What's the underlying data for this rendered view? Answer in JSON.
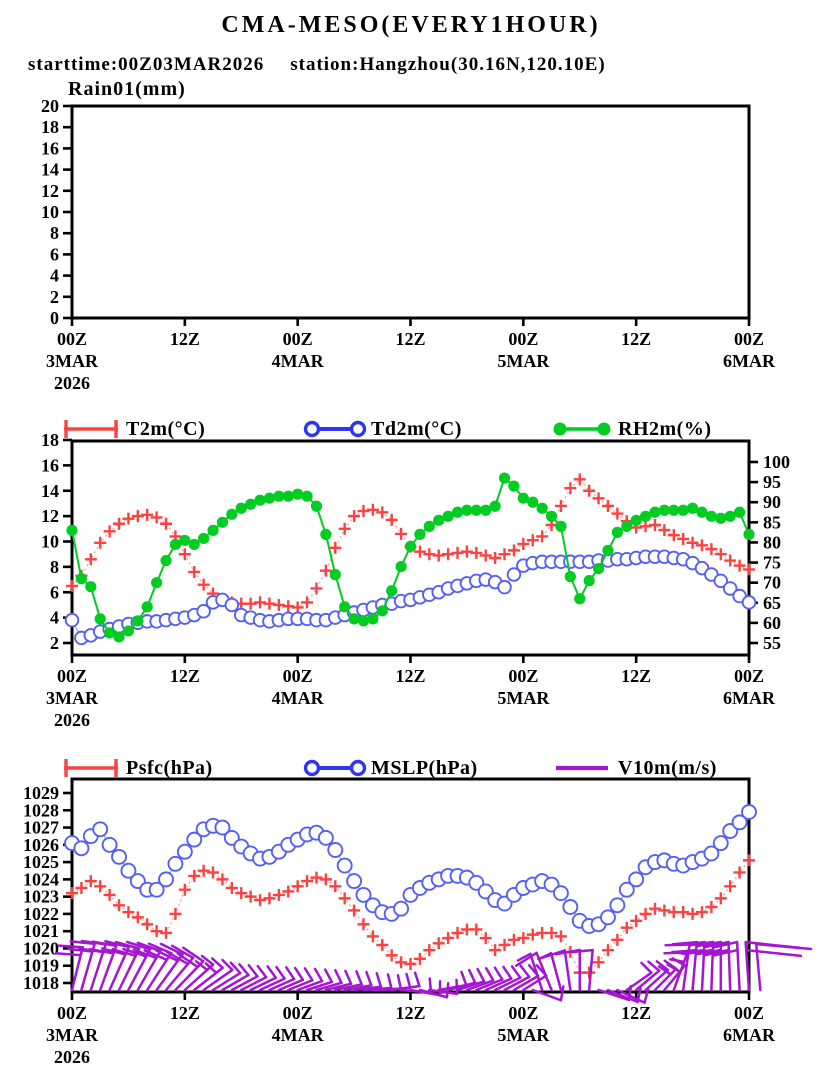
{
  "header": {
    "title": "CMA-MESO(EVERY1HOUR)",
    "starttime": "starttime:00Z03MAR2026",
    "station": "station:Hangzhou(30.16N,120.10E)"
  },
  "colors": {
    "temp_red": "#fb4242",
    "temp_red_line": "#faa0a0",
    "dew_blue": "#2e36f0",
    "dew_blue_marker": "#5560f2",
    "dew_blue_line": "#9aa1f6",
    "rh_green": "#00cc22",
    "wind_purple": "#a416d2",
    "axis_black": "#000000",
    "background": "#ffffff"
  },
  "x_axis": {
    "hours_total": 72,
    "ticks": [
      {
        "h": 0,
        "top": "00Z",
        "mid": "3MAR",
        "bot": "2026"
      },
      {
        "h": 12,
        "top": "12Z"
      },
      {
        "h": 24,
        "top": "00Z",
        "mid": "4MAR"
      },
      {
        "h": 36,
        "top": "12Z"
      },
      {
        "h": 48,
        "top": "00Z",
        "mid": "5MAR"
      },
      {
        "h": 60,
        "top": "12Z"
      },
      {
        "h": 72,
        "top": "00Z",
        "mid": "6MAR"
      }
    ]
  },
  "panels": {
    "rain": {
      "title": "Rain01(mm)",
      "y_ticks": [
        0,
        2,
        4,
        6,
        8,
        10,
        12,
        14,
        16,
        18,
        20
      ]
    },
    "temp": {
      "legend": [
        {
          "label": "T2m(°C)"
        },
        {
          "label": "Td2m(°C)"
        },
        {
          "label": "RH2m(%)"
        }
      ],
      "left_ticks": [
        2,
        4,
        6,
        8,
        10,
        12,
        14,
        16,
        18
      ],
      "right_ticks": [
        55,
        60,
        65,
        70,
        75,
        80,
        85,
        90,
        95,
        100
      ]
    },
    "pressure": {
      "legend": [
        {
          "label": "Psfc(hPa)"
        },
        {
          "label": "MSLP(hPa)"
        },
        {
          "label": "V10m(m/s)"
        }
      ],
      "left_ticks": [
        1018,
        1019,
        1020,
        1021,
        1022,
        1023,
        1024,
        1025,
        1026,
        1027,
        1028,
        1029
      ]
    }
  },
  "chart_data": [
    {
      "type": "line",
      "title": "Rain01(mm)",
      "x_start": "00Z 3MAR2026",
      "x_end": "00Z 6MAR2026",
      "x_step_hours": 1,
      "ylim": [
        0,
        20
      ],
      "series": [
        {
          "name": "Rain01(mm)",
          "values": [],
          "note": "no precipitation forecast - panel empty"
        }
      ]
    },
    {
      "type": "line",
      "x_start": "00Z 3MAR2026",
      "x_step_hours": 1,
      "ylim_left": [
        1,
        18
      ],
      "ylim_right": [
        52,
        105.3
      ],
      "series": [
        {
          "name": "T2m(°C)",
          "axis": "left",
          "marker": "plus",
          "color": "#fb4242",
          "values": [
            6.5,
            7.3,
            8.6,
            9.9,
            10.8,
            11.4,
            11.8,
            12.0,
            12.1,
            11.9,
            11.4,
            10.4,
            9.0,
            7.6,
            6.6,
            5.9,
            5.4,
            5.2,
            5.1,
            5.1,
            5.2,
            5.1,
            5.0,
            4.9,
            4.8,
            5.2,
            6.3,
            7.7,
            9.5,
            11.0,
            12.0,
            12.4,
            12.5,
            12.3,
            11.7,
            10.6,
            9.6,
            9.2,
            9.0,
            8.9,
            9.0,
            9.1,
            9.2,
            9.1,
            8.9,
            8.7,
            9.0,
            9.3,
            9.8,
            10.1,
            10.4,
            11.3,
            12.8,
            14.2,
            14.9,
            14.0,
            13.4,
            12.8,
            12.2,
            11.6,
            11.1,
            11.2,
            11.3,
            10.9,
            10.5,
            10.2,
            9.9,
            9.7,
            9.4,
            9.0,
            8.5,
            8.1,
            7.8
          ]
        },
        {
          "name": "Td2m(°C)",
          "axis": "left",
          "marker": "open-circle",
          "color": "#2e36f0",
          "values": [
            3.8,
            2.4,
            2.6,
            2.9,
            3.1,
            3.3,
            3.5,
            3.6,
            3.7,
            3.7,
            3.8,
            3.9,
            4.0,
            4.2,
            4.5,
            5.2,
            5.4,
            5.0,
            4.2,
            4.0,
            3.8,
            3.7,
            3.8,
            3.9,
            3.9,
            3.9,
            3.8,
            3.8,
            4.0,
            4.2,
            4.4,
            4.6,
            4.8,
            5.0,
            5.1,
            5.3,
            5.4,
            5.6,
            5.8,
            6.0,
            6.3,
            6.5,
            6.7,
            6.9,
            7.0,
            6.8,
            6.4,
            7.4,
            8.1,
            8.3,
            8.4,
            8.4,
            8.4,
            8.4,
            8.4,
            8.4,
            8.5,
            8.5,
            8.6,
            8.6,
            8.7,
            8.8,
            8.8,
            8.8,
            8.7,
            8.6,
            8.3,
            7.9,
            7.4,
            6.9,
            6.3,
            5.7,
            5.2
          ]
        },
        {
          "name": "RH2m(%)",
          "axis": "right",
          "marker": "filled-circle",
          "color": "#00cc22",
          "values": [
            83,
            71,
            69,
            61,
            57.5,
            56.5,
            58,
            60.5,
            64,
            70,
            75.5,
            79.5,
            80.5,
            79.5,
            81,
            83,
            85,
            87,
            88.5,
            89.5,
            90.5,
            91,
            91.5,
            91.5,
            92,
            91.5,
            89,
            82,
            72,
            64,
            61,
            60.5,
            61,
            63,
            68,
            74,
            79,
            82,
            84,
            85.5,
            86.5,
            87.5,
            88,
            88,
            88,
            89,
            96,
            94,
            91,
            90,
            88.5,
            86.5,
            84,
            71.5,
            66,
            70.5,
            73.5,
            78,
            82.5,
            84,
            85.5,
            86.5,
            87.5,
            88,
            88,
            88,
            88.5,
            87.5,
            86.5,
            86,
            86.5,
            87.5,
            82
          ]
        }
      ]
    },
    {
      "type": "line+wind-barbs",
      "x_start": "00Z 3MAR2026",
      "x_step_hours": 1,
      "ylim": [
        1017.5,
        1029.8
      ],
      "series": [
        {
          "name": "Psfc(hPa)",
          "marker": "plus",
          "color": "#fb4242",
          "values": [
            1023.2,
            1023.5,
            1023.9,
            1023.6,
            1023.1,
            1022.5,
            1022.1,
            1021.8,
            1021.4,
            1021.0,
            1020.9,
            1022.0,
            1023.4,
            1024.2,
            1024.5,
            1024.4,
            1024.0,
            1023.5,
            1023.2,
            1023.0,
            1022.8,
            1022.9,
            1023.1,
            1023.3,
            1023.6,
            1023.9,
            1024.1,
            1024.0,
            1023.6,
            1022.9,
            1022.2,
            1021.4,
            1020.7,
            1020.2,
            1019.6,
            1019.2,
            1019.1,
            1019.4,
            1019.9,
            1020.3,
            1020.6,
            1020.9,
            1021.1,
            1021.1,
            1020.6,
            1019.9,
            1020.2,
            1020.5,
            1020.6,
            1020.8,
            1020.9,
            1020.9,
            1020.7,
            1019.8,
            1018.6,
            1018.6,
            1019.2,
            1019.9,
            1020.5,
            1021.2,
            1021.6,
            1022.0,
            1022.3,
            1022.2,
            1022.1,
            1022.1,
            1022.0,
            1022.1,
            1022.4,
            1022.9,
            1023.6,
            1024.4,
            1025.1
          ]
        },
        {
          "name": "MSLP(hPa)",
          "marker": "open-circle",
          "color": "#2e36f0",
          "values": [
            1026.1,
            1025.8,
            1026.5,
            1026.9,
            1026.0,
            1025.3,
            1024.5,
            1023.9,
            1023.4,
            1023.4,
            1024.0,
            1024.9,
            1025.6,
            1026.3,
            1026.9,
            1027.1,
            1027.0,
            1026.4,
            1025.9,
            1025.5,
            1025.2,
            1025.3,
            1025.6,
            1026.0,
            1026.3,
            1026.6,
            1026.7,
            1026.4,
            1025.7,
            1024.8,
            1023.9,
            1023.1,
            1022.5,
            1022.1,
            1022.0,
            1022.3,
            1023.1,
            1023.5,
            1023.8,
            1024.0,
            1024.2,
            1024.2,
            1024.1,
            1023.8,
            1023.3,
            1022.8,
            1022.6,
            1023.1,
            1023.5,
            1023.7,
            1023.9,
            1023.7,
            1023.2,
            1022.4,
            1021.6,
            1021.3,
            1021.4,
            1021.8,
            1022.5,
            1023.4,
            1024.0,
            1024.7,
            1025.0,
            1025.1,
            1024.9,
            1024.8,
            1025.0,
            1025.2,
            1025.5,
            1026.1,
            1026.8,
            1027.3,
            1027.9
          ]
        }
      ],
      "wind_barbs": {
        "name": "V10m(m/s)",
        "color": "#a416d2",
        "barb_format": [
          "hour",
          "staff_angle_deg_from_vertical",
          "staff_length_px",
          "tick_count",
          "ticks_flipped"
        ],
        "barbs": [
          [
            0,
            14,
            44,
            2,
            0
          ],
          [
            1,
            16,
            48,
            2,
            0
          ],
          [
            2,
            18,
            48,
            2,
            0
          ],
          [
            3,
            20,
            47,
            2,
            0
          ],
          [
            4,
            24,
            47,
            2,
            0
          ],
          [
            5,
            26,
            46,
            2,
            0
          ],
          [
            6,
            28,
            46,
            2,
            0
          ],
          [
            7,
            30,
            45,
            2,
            0
          ],
          [
            8,
            33,
            44,
            2,
            0
          ],
          [
            9,
            36,
            44,
            2,
            0
          ],
          [
            10,
            40,
            42,
            2,
            0
          ],
          [
            11,
            44,
            40,
            2,
            0
          ],
          [
            12,
            48,
            38,
            2,
            0
          ],
          [
            13,
            52,
            36,
            2,
            0
          ],
          [
            14,
            55,
            35,
            1,
            0
          ],
          [
            15,
            58,
            32,
            1,
            0
          ],
          [
            16,
            60,
            30,
            1,
            0
          ],
          [
            17,
            62,
            29,
            1,
            0
          ],
          [
            18,
            63,
            28,
            1,
            0
          ],
          [
            19,
            64,
            28,
            1,
            0
          ],
          [
            20,
            65,
            27,
            1,
            0
          ],
          [
            21,
            66,
            27,
            1,
            0
          ],
          [
            22,
            67,
            26,
            1,
            0
          ],
          [
            23,
            68,
            26,
            1,
            0
          ],
          [
            24,
            70,
            26,
            1,
            0
          ],
          [
            25,
            72,
            26,
            1,
            0
          ],
          [
            26,
            74,
            26,
            1,
            0
          ],
          [
            27,
            76,
            26,
            1,
            0
          ],
          [
            28,
            78,
            27,
            1,
            0
          ],
          [
            29,
            80,
            27,
            1,
            0
          ],
          [
            30,
            83,
            27,
            1,
            0
          ],
          [
            31,
            86,
            28,
            1,
            0
          ],
          [
            32,
            88,
            28,
            1,
            0
          ],
          [
            33,
            85,
            28,
            1,
            0
          ],
          [
            34,
            82,
            28,
            1,
            0
          ],
          [
            35,
            95,
            30,
            1,
            0
          ],
          [
            36,
            100,
            30,
            1,
            0
          ],
          [
            37,
            105,
            28,
            1,
            0
          ],
          [
            38,
            98,
            28,
            1,
            0
          ],
          [
            39,
            80,
            28,
            1,
            0
          ],
          [
            40,
            75,
            28,
            1,
            0
          ],
          [
            41,
            72,
            28,
            1,
            0
          ],
          [
            42,
            70,
            28,
            1,
            0
          ],
          [
            43,
            68,
            28,
            1,
            0
          ],
          [
            44,
            66,
            28,
            1,
            0
          ],
          [
            45,
            64,
            28,
            1,
            0
          ],
          [
            46,
            62,
            28,
            1,
            0
          ],
          [
            47,
            60,
            28,
            1,
            0
          ],
          [
            48,
            58,
            27,
            1,
            0
          ],
          [
            49,
            110,
            30,
            1,
            0
          ],
          [
            50,
            -18,
            38,
            1,
            0
          ],
          [
            51,
            -22,
            40,
            1,
            0
          ],
          [
            52,
            -15,
            38,
            1,
            0
          ],
          [
            53,
            -8,
            40,
            1,
            0
          ],
          [
            54,
            0,
            40,
            1,
            0
          ],
          [
            55,
            5,
            40,
            1,
            0
          ],
          [
            56,
            108,
            32,
            1,
            0
          ],
          [
            57,
            112,
            32,
            1,
            0
          ],
          [
            58,
            115,
            30,
            1,
            0
          ],
          [
            59,
            55,
            30,
            1,
            0
          ],
          [
            60,
            50,
            30,
            1,
            0
          ],
          [
            61,
            48,
            30,
            1,
            0
          ],
          [
            62,
            45,
            30,
            2,
            0
          ],
          [
            63,
            40,
            32,
            2,
            0
          ],
          [
            64,
            20,
            38,
            2,
            0
          ],
          [
            65,
            8,
            46,
            2,
            0
          ],
          [
            66,
            5,
            48,
            2,
            0
          ],
          [
            67,
            3,
            48,
            2,
            0
          ],
          [
            68,
            2,
            48,
            2,
            0
          ],
          [
            69,
            0,
            48,
            2,
            0
          ],
          [
            70,
            -2,
            48,
            2,
            0
          ],
          [
            71,
            -3,
            48,
            2,
            0
          ],
          [
            72,
            -4,
            48,
            2,
            1
          ],
          [
            73.2,
            -5,
            46,
            1,
            1
          ]
        ]
      }
    }
  ]
}
